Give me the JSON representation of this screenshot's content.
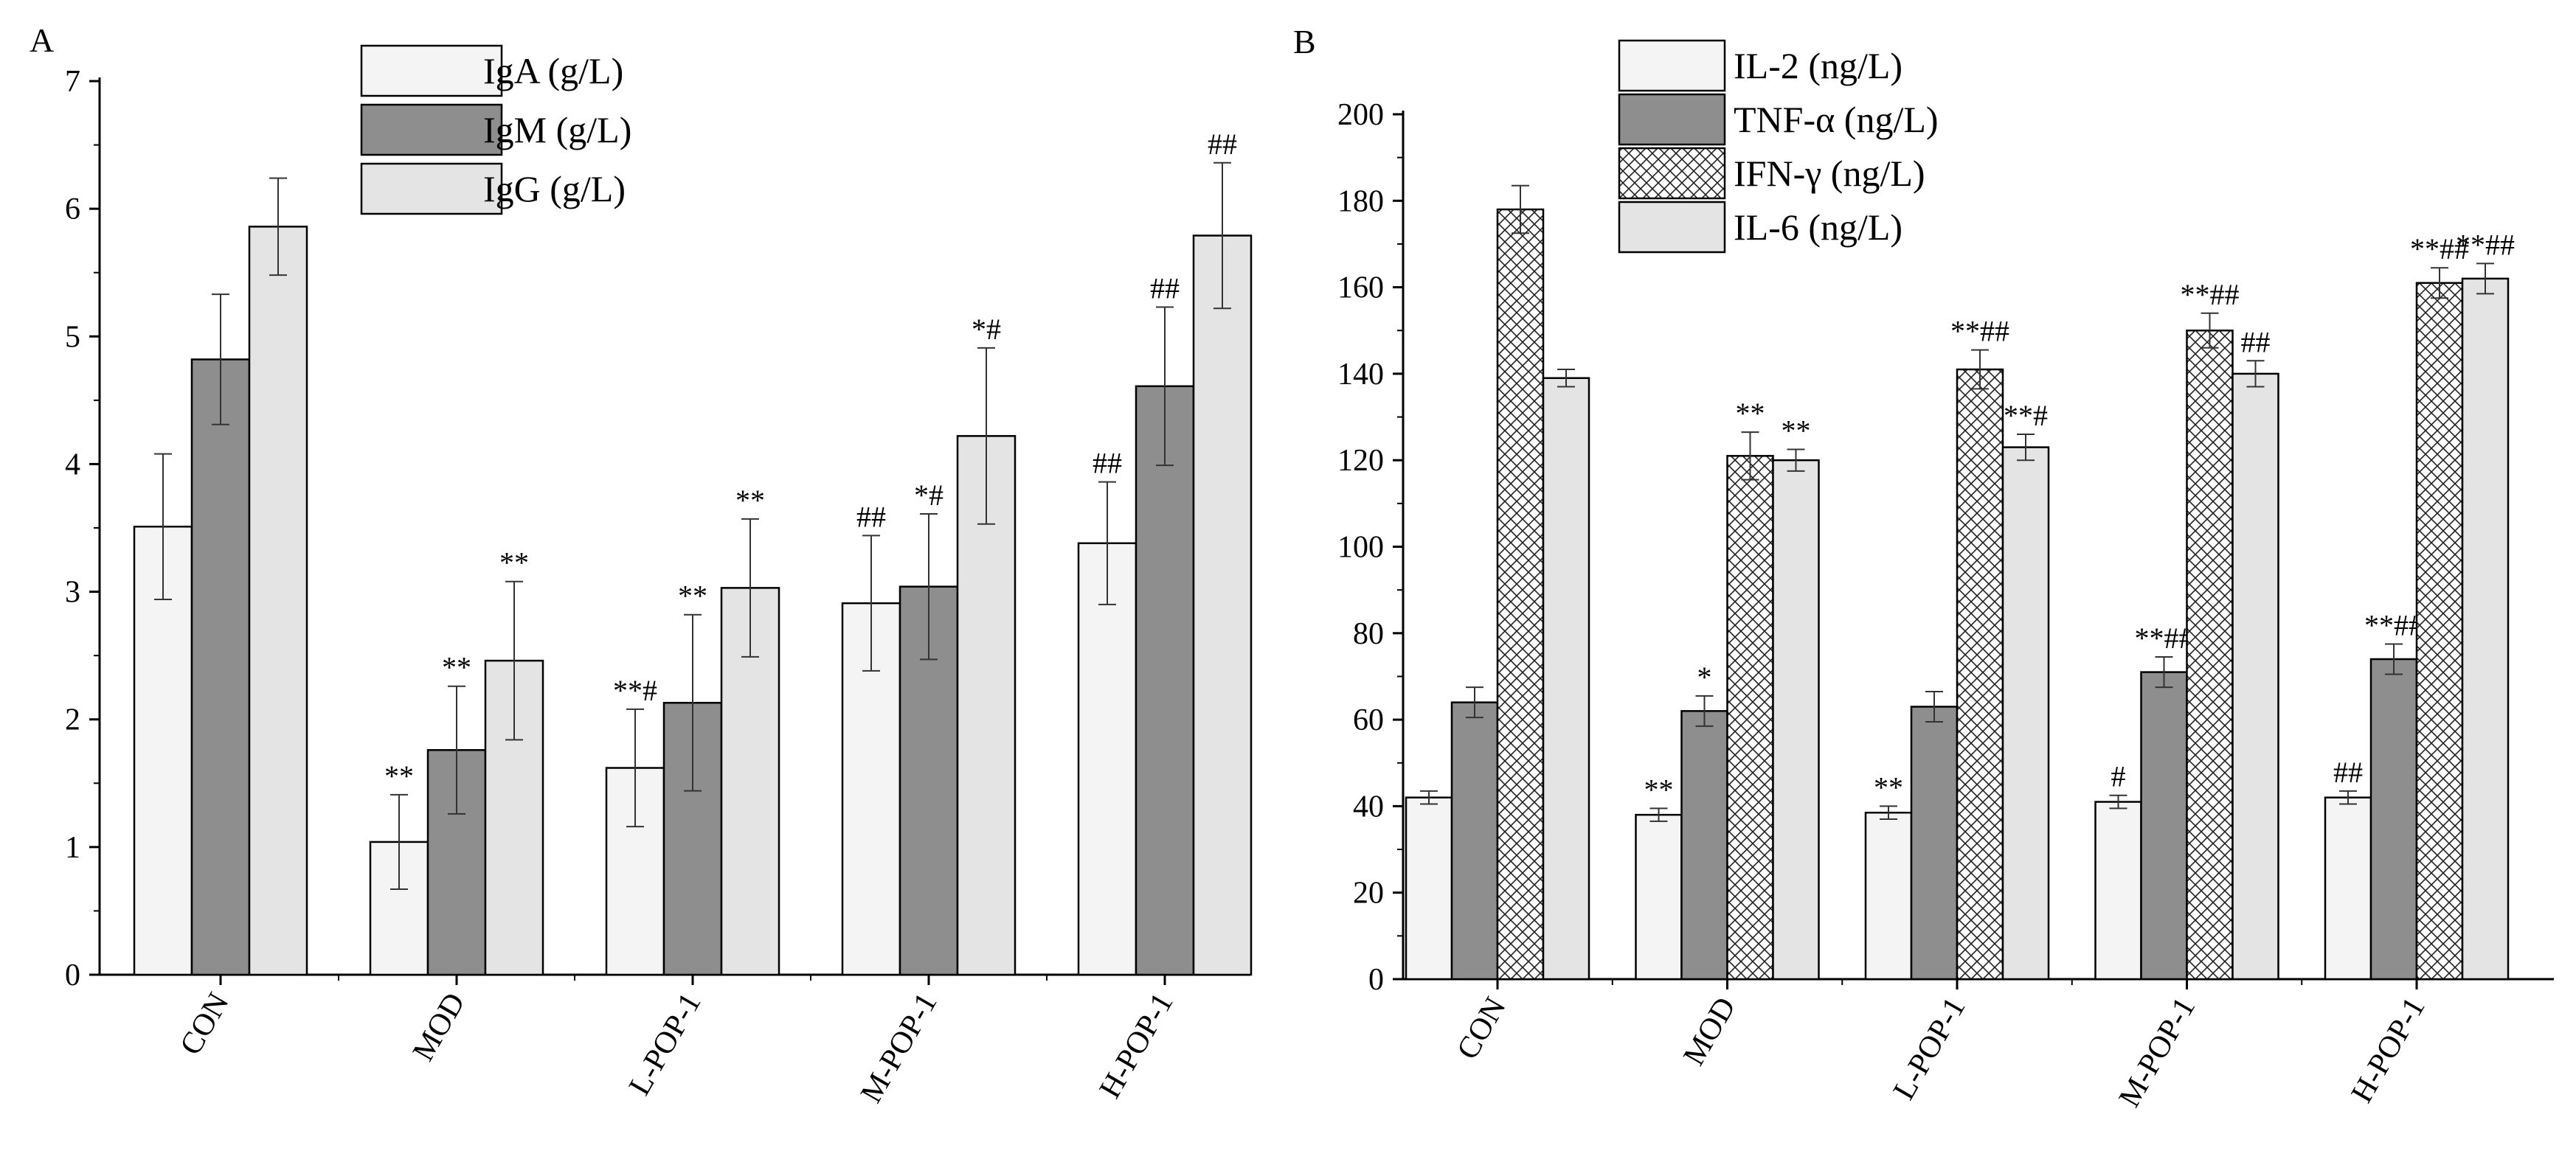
{
  "chart_data": [
    {
      "type": "bar",
      "panel_label": "A",
      "categories": [
        "CON",
        "MOD",
        "L-POP-1",
        "M-POP-1",
        "H-POP-1"
      ],
      "ylim": [
        0,
        7
      ],
      "yticks": [
        "0",
        "1",
        "2",
        "3",
        "4",
        "5",
        "6",
        "7"
      ],
      "grid": false,
      "legend_position": "top-center",
      "series": [
        {
          "name": "IgA (g/L)",
          "pattern": "plain",
          "color": "#f4f4f4",
          "values": [
            3.51,
            1.04,
            1.62,
            2.91,
            3.38
          ],
          "errors": [
            0.57,
            0.37,
            0.46,
            0.53,
            0.48
          ],
          "sig": [
            "",
            "**",
            "**#",
            "##",
            "##"
          ]
        },
        {
          "name": "IgM (g/L)",
          "pattern": "plain",
          "color": "#8e8e8e",
          "values": [
            4.82,
            1.76,
            2.13,
            3.04,
            4.61
          ],
          "errors": [
            0.51,
            0.5,
            0.69,
            0.57,
            0.62
          ],
          "sig": [
            "",
            "**",
            "**",
            "*#",
            "##"
          ]
        },
        {
          "name": "IgG (g/L)",
          "pattern": "plain",
          "color": "#e4e4e4",
          "values": [
            5.86,
            2.46,
            3.03,
            4.22,
            5.79
          ],
          "errors": [
            0.38,
            0.62,
            0.54,
            0.69,
            0.57
          ],
          "sig": [
            "",
            "**",
            "**",
            "*#",
            "##"
          ]
        }
      ]
    },
    {
      "type": "bar",
      "panel_label": "B",
      "categories": [
        "CON",
        "MOD",
        "L-POP-1",
        "M-POP-1",
        "H-POP-1"
      ],
      "ylim": [
        0,
        200
      ],
      "yticks": [
        "0",
        "20",
        "40",
        "60",
        "80",
        "100",
        "120",
        "140",
        "160",
        "180",
        "200"
      ],
      "grid": false,
      "legend_position": "top-center",
      "series": [
        {
          "name": "IL-2 (ng/L)",
          "pattern": "plain",
          "color": "#f4f4f4",
          "values": [
            42,
            38,
            38.5,
            41,
            42
          ],
          "errors": [
            1.5,
            1.5,
            1.5,
            1.5,
            1.5
          ],
          "sig": [
            "",
            "**",
            "**",
            "#",
            "##"
          ]
        },
        {
          "name": "TNF-α (ng/L)",
          "pattern": "plain",
          "color": "#8e8e8e",
          "values": [
            64,
            62,
            63,
            71,
            74
          ],
          "errors": [
            3.5,
            3.5,
            3.5,
            3.5,
            3.5
          ],
          "sig": [
            "",
            "*",
            "",
            "**##",
            "**##"
          ]
        },
        {
          "name": "IFN-γ (ng/L)",
          "pattern": "crosshatch",
          "color": "#ffffff",
          "values": [
            178,
            121,
            141,
            150,
            161
          ],
          "errors": [
            5.5,
            5.5,
            4.5,
            4.0,
            3.5
          ],
          "sig": [
            "",
            "**",
            "**##",
            "**##",
            "**##"
          ]
        },
        {
          "name": "IL-6 (ng/L)",
          "pattern": "plain",
          "color": "#e4e4e4",
          "values": [
            139,
            120,
            123,
            140,
            162
          ],
          "errors": [
            2.0,
            2.5,
            3.0,
            3.0,
            3.5
          ],
          "sig": [
            "",
            "**",
            "**#",
            "##",
            "**##"
          ]
        }
      ]
    }
  ]
}
